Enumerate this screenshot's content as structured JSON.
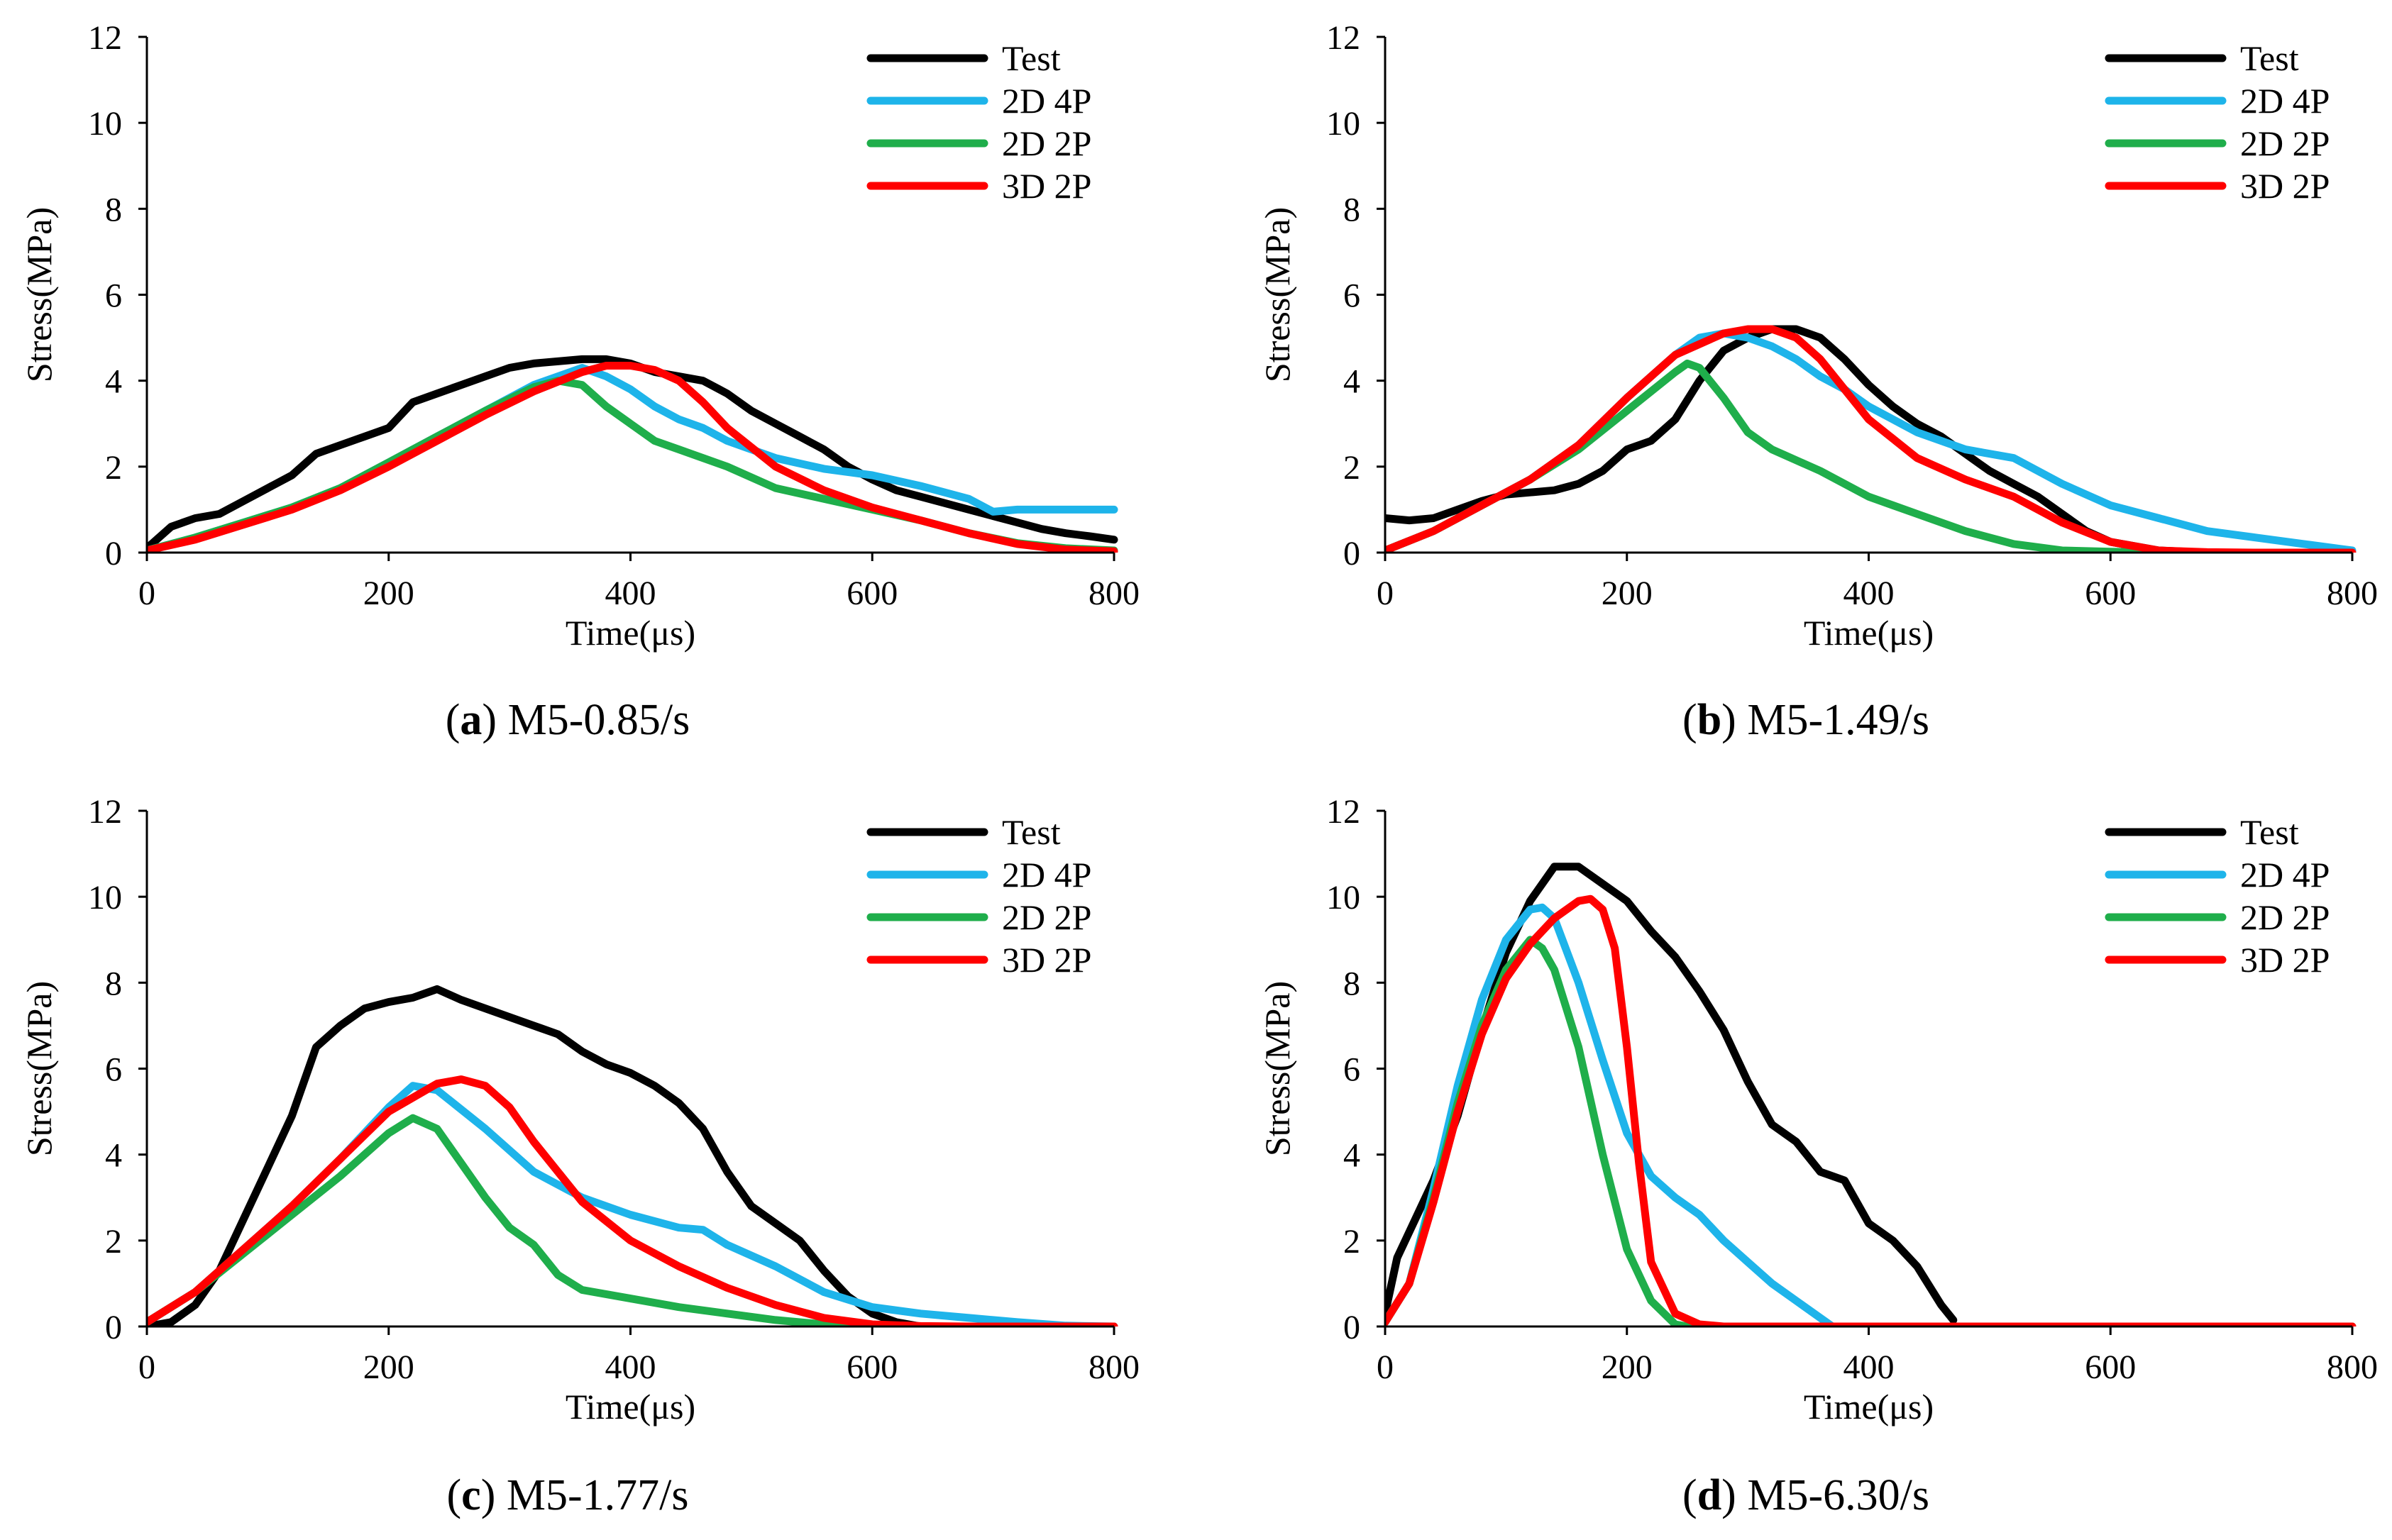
{
  "figure": {
    "colors": {
      "Test": "#000000",
      "2D 4P": "#1eb4ea",
      "2D 2P": "#1fae4b",
      "3D 2P": "#ff0000"
    }
  },
  "chart_data": [
    {
      "type": "line",
      "id": "a",
      "caption_letter": "a",
      "caption_text": "M5-0.85/s",
      "xlabel": "Time(μs)",
      "ylabel": "Stress(MPa)",
      "xlim": [
        0,
        800
      ],
      "ylim": [
        0,
        12
      ],
      "xticks": [
        "0",
        "200",
        "400",
        "600",
        "800"
      ],
      "yticks": [
        "0",
        "2",
        "4",
        "6",
        "8",
        "10",
        "12"
      ],
      "legend": [
        "Test",
        "2D 4P",
        "2D 2P",
        "3D 2P"
      ],
      "series": [
        {
          "name": "Test",
          "color": "#000000",
          "x": [
            0,
            20,
            40,
            60,
            80,
            100,
            120,
            140,
            160,
            180,
            200,
            220,
            240,
            260,
            280,
            300,
            320,
            340,
            360,
            380,
            400,
            420,
            440,
            460,
            480,
            500,
            520,
            540,
            560,
            580,
            600,
            620,
            640,
            660,
            680,
            700,
            720,
            740,
            760,
            780,
            800
          ],
          "y": [
            0.1,
            0.6,
            0.8,
            0.9,
            1.2,
            1.5,
            1.8,
            2.3,
            2.5,
            2.7,
            2.9,
            3.5,
            3.7,
            3.9,
            4.1,
            4.3,
            4.4,
            4.45,
            4.5,
            4.5,
            4.4,
            4.2,
            4.1,
            4.0,
            3.7,
            3.3,
            3.0,
            2.7,
            2.4,
            2.0,
            1.7,
            1.45,
            1.3,
            1.15,
            1.0,
            0.85,
            0.7,
            0.55,
            0.45,
            0.38,
            0.3
          ]
        },
        {
          "name": "2D 4P",
          "color": "#1eb4ea",
          "x": [
            0,
            40,
            80,
            120,
            160,
            200,
            240,
            280,
            320,
            360,
            380,
            400,
            420,
            440,
            460,
            480,
            520,
            560,
            600,
            640,
            680,
            700,
            720,
            760,
            800
          ],
          "y": [
            0.05,
            0.35,
            0.7,
            1.05,
            1.5,
            2.1,
            2.7,
            3.3,
            3.9,
            4.3,
            4.1,
            3.8,
            3.4,
            3.1,
            2.9,
            2.6,
            2.2,
            1.95,
            1.8,
            1.55,
            1.25,
            0.95,
            1.0,
            1.0,
            1.0
          ]
        },
        {
          "name": "2D 2P",
          "color": "#1fae4b",
          "x": [
            0,
            40,
            80,
            120,
            160,
            200,
            240,
            280,
            320,
            340,
            360,
            380,
            400,
            420,
            440,
            460,
            480,
            520,
            560,
            600,
            640,
            680,
            720,
            760,
            800
          ],
          "y": [
            0.05,
            0.35,
            0.7,
            1.05,
            1.5,
            2.1,
            2.7,
            3.3,
            3.85,
            4.0,
            3.9,
            3.4,
            3.0,
            2.6,
            2.4,
            2.2,
            2.0,
            1.5,
            1.25,
            1.0,
            0.75,
            0.45,
            0.22,
            0.1,
            0.05
          ]
        },
        {
          "name": "3D 2P",
          "color": "#ff0000",
          "x": [
            0,
            40,
            80,
            120,
            160,
            200,
            240,
            280,
            320,
            360,
            380,
            400,
            420,
            440,
            460,
            480,
            520,
            560,
            600,
            640,
            680,
            720,
            760,
            800
          ],
          "y": [
            0.05,
            0.3,
            0.65,
            1.0,
            1.45,
            2.0,
            2.6,
            3.2,
            3.75,
            4.2,
            4.35,
            4.35,
            4.25,
            4.0,
            3.5,
            2.9,
            2.0,
            1.45,
            1.05,
            0.75,
            0.45,
            0.2,
            0.07,
            0.03
          ]
        }
      ]
    },
    {
      "type": "line",
      "id": "b",
      "caption_letter": "b",
      "caption_text": "M5-1.49/s",
      "xlabel": "Time(μs)",
      "ylabel": "Stress(MPa)",
      "xlim": [
        0,
        800
      ],
      "ylim": [
        0,
        12
      ],
      "xticks": [
        "0",
        "200",
        "400",
        "600",
        "800"
      ],
      "yticks": [
        "0",
        "2",
        "4",
        "6",
        "8",
        "10",
        "12"
      ],
      "legend": [
        "Test",
        "2D 4P",
        "2D 2P",
        "3D 2P"
      ],
      "series": [
        {
          "name": "Test",
          "color": "#000000",
          "x": [
            0,
            20,
            40,
            60,
            80,
            100,
            120,
            140,
            160,
            180,
            200,
            220,
            240,
            260,
            280,
            300,
            320,
            340,
            360,
            380,
            400,
            420,
            440,
            460,
            480,
            500,
            520,
            540,
            560,
            580,
            600,
            640,
            680
          ],
          "y": [
            0.8,
            0.75,
            0.8,
            1.0,
            1.2,
            1.35,
            1.4,
            1.45,
            1.6,
            1.9,
            2.4,
            2.6,
            3.1,
            4.0,
            4.7,
            5.0,
            5.2,
            5.2,
            5.0,
            4.5,
            3.9,
            3.4,
            3.0,
            2.7,
            2.3,
            1.9,
            1.6,
            1.3,
            0.9,
            0.5,
            0.25,
            0.05,
            0.0
          ]
        },
        {
          "name": "2D 4P",
          "color": "#1eb4ea",
          "x": [
            0,
            40,
            80,
            120,
            160,
            200,
            240,
            260,
            280,
            300,
            320,
            340,
            360,
            380,
            400,
            440,
            480,
            520,
            560,
            600,
            640,
            680,
            720,
            760,
            800
          ],
          "y": [
            0.05,
            0.5,
            1.1,
            1.7,
            2.5,
            3.6,
            4.6,
            5.0,
            5.1,
            5.0,
            4.8,
            4.5,
            4.1,
            3.8,
            3.4,
            2.8,
            2.4,
            2.2,
            1.6,
            1.1,
            0.8,
            0.5,
            0.35,
            0.2,
            0.05
          ]
        },
        {
          "name": "2D 2P",
          "color": "#1fae4b",
          "x": [
            0,
            40,
            80,
            120,
            160,
            200,
            240,
            250,
            260,
            280,
            300,
            320,
            360,
            400,
            440,
            480,
            520,
            560,
            600,
            640
          ],
          "y": [
            0.05,
            0.5,
            1.1,
            1.7,
            2.4,
            3.3,
            4.2,
            4.4,
            4.3,
            3.6,
            2.8,
            2.4,
            1.9,
            1.3,
            0.9,
            0.5,
            0.2,
            0.05,
            0.02,
            0.0
          ]
        },
        {
          "name": "3D 2P",
          "color": "#ff0000",
          "x": [
            0,
            40,
            80,
            120,
            160,
            200,
            240,
            280,
            300,
            320,
            340,
            360,
            380,
            400,
            440,
            480,
            520,
            560,
            600,
            640,
            680,
            720,
            800
          ],
          "y": [
            0.05,
            0.5,
            1.1,
            1.7,
            2.5,
            3.6,
            4.6,
            5.1,
            5.2,
            5.2,
            5.0,
            4.5,
            3.8,
            3.1,
            2.2,
            1.7,
            1.3,
            0.7,
            0.25,
            0.05,
            0.01,
            0.0,
            0.0
          ]
        }
      ]
    },
    {
      "type": "line",
      "id": "c",
      "caption_letter": "c",
      "caption_text": "M5-1.77/s",
      "xlabel": "Time(μs)",
      "ylabel": "Stress(MPa)",
      "xlim": [
        0,
        800
      ],
      "ylim": [
        0,
        12
      ],
      "xticks": [
        "0",
        "200",
        "400",
        "600",
        "800"
      ],
      "yticks": [
        "0",
        "2",
        "4",
        "6",
        "8",
        "10",
        "12"
      ],
      "legend": [
        "Test",
        "2D 4P",
        "2D 2P",
        "3D 2P"
      ],
      "series": [
        {
          "name": "Test",
          "color": "#000000",
          "x": [
            0,
            20,
            40,
            60,
            80,
            100,
            120,
            140,
            160,
            180,
            200,
            220,
            240,
            260,
            280,
            300,
            320,
            340,
            360,
            380,
            400,
            420,
            440,
            460,
            480,
            500,
            520,
            540,
            560,
            580,
            600,
            620,
            640,
            680
          ],
          "y": [
            0.0,
            0.1,
            0.5,
            1.3,
            2.5,
            3.7,
            4.9,
            6.5,
            7.0,
            7.4,
            7.55,
            7.65,
            7.85,
            7.6,
            7.4,
            7.2,
            7.0,
            6.8,
            6.4,
            6.1,
            5.9,
            5.6,
            5.2,
            4.6,
            3.6,
            2.8,
            2.4,
            2.0,
            1.3,
            0.7,
            0.3,
            0.1,
            0.0,
            0.0
          ]
        },
        {
          "name": "2D 4P",
          "color": "#1eb4ea",
          "x": [
            0,
            40,
            80,
            120,
            160,
            200,
            220,
            240,
            280,
            320,
            360,
            400,
            440,
            460,
            480,
            520,
            560,
            600,
            640,
            680,
            720,
            760,
            800
          ],
          "y": [
            0.1,
            0.8,
            1.8,
            2.8,
            3.9,
            5.1,
            5.6,
            5.5,
            4.6,
            3.6,
            3.0,
            2.6,
            2.3,
            2.25,
            1.9,
            1.4,
            0.8,
            0.45,
            0.3,
            0.2,
            0.1,
            0.02,
            0.0
          ]
        },
        {
          "name": "2D 2P",
          "color": "#1fae4b",
          "x": [
            0,
            40,
            80,
            120,
            160,
            200,
            220,
            240,
            260,
            280,
            300,
            320,
            340,
            360,
            400,
            440,
            480,
            520,
            560,
            600,
            800
          ],
          "y": [
            0.1,
            0.8,
            1.7,
            2.6,
            3.5,
            4.5,
            4.85,
            4.6,
            3.8,
            3.0,
            2.3,
            1.9,
            1.2,
            0.85,
            0.65,
            0.45,
            0.3,
            0.15,
            0.05,
            0.0,
            0.0
          ]
        },
        {
          "name": "3D 2P",
          "color": "#ff0000",
          "x": [
            0,
            40,
            80,
            120,
            160,
            200,
            240,
            260,
            280,
            300,
            320,
            340,
            360,
            400,
            440,
            480,
            520,
            560,
            600,
            640,
            680,
            800
          ],
          "y": [
            0.1,
            0.8,
            1.8,
            2.8,
            3.9,
            5.0,
            5.65,
            5.75,
            5.6,
            5.1,
            4.3,
            3.6,
            2.9,
            2.0,
            1.4,
            0.9,
            0.5,
            0.2,
            0.05,
            0.01,
            0.0,
            0.0
          ]
        }
      ]
    },
    {
      "type": "line",
      "id": "d",
      "caption_letter": "d",
      "caption_text": "M5-6.30/s",
      "xlabel": "Time(μs)",
      "ylabel": "Stress(MPa)",
      "xlim": [
        0,
        800
      ],
      "ylim": [
        0,
        12
      ],
      "xticks": [
        "0",
        "200",
        "400",
        "600",
        "800"
      ],
      "yticks": [
        "0",
        "2",
        "4",
        "6",
        "8",
        "10",
        "12"
      ],
      "legend": [
        "Test",
        "2D 4P",
        "2D 2P",
        "3D 2P"
      ],
      "series": [
        {
          "name": "Test",
          "color": "#000000",
          "x": [
            0,
            10,
            20,
            40,
            60,
            80,
            100,
            120,
            140,
            160,
            180,
            200,
            220,
            240,
            260,
            280,
            300,
            320,
            340,
            360,
            380,
            400,
            420,
            440,
            460,
            470
          ],
          "y": [
            0.3,
            1.6,
            2.2,
            3.4,
            4.9,
            6.9,
            8.7,
            9.9,
            10.7,
            10.7,
            10.3,
            9.9,
            9.2,
            8.6,
            7.8,
            6.9,
            5.7,
            4.7,
            4.3,
            3.6,
            3.4,
            2.4,
            2.0,
            1.4,
            0.5,
            0.15
          ]
        },
        {
          "name": "2D 4P",
          "color": "#1eb4ea",
          "x": [
            0,
            20,
            40,
            60,
            80,
            100,
            120,
            130,
            140,
            160,
            180,
            200,
            220,
            240,
            260,
            280,
            300,
            320,
            340,
            360,
            370
          ],
          "y": [
            0.1,
            1.0,
            3.2,
            5.6,
            7.6,
            9.0,
            9.7,
            9.75,
            9.5,
            8.0,
            6.2,
            4.5,
            3.5,
            3.0,
            2.6,
            2.0,
            1.5,
            1.0,
            0.6,
            0.2,
            0.0
          ]
        },
        {
          "name": "2D 2P",
          "color": "#1fae4b",
          "x": [
            0,
            20,
            40,
            60,
            80,
            100,
            120,
            130,
            140,
            160,
            180,
            200,
            220,
            240,
            250,
            800
          ],
          "y": [
            0.1,
            1.0,
            3.0,
            5.2,
            7.0,
            8.3,
            9.0,
            8.8,
            8.3,
            6.5,
            4.0,
            1.8,
            0.6,
            0.05,
            0.0,
            0.0
          ]
        },
        {
          "name": "3D 2P",
          "color": "#ff0000",
          "x": [
            0,
            20,
            40,
            60,
            80,
            100,
            120,
            140,
            160,
            170,
            180,
            190,
            200,
            210,
            220,
            240,
            260,
            280,
            800
          ],
          "y": [
            0.1,
            1.0,
            2.9,
            5.0,
            6.8,
            8.1,
            8.9,
            9.5,
            9.9,
            9.95,
            9.7,
            8.8,
            6.5,
            3.8,
            1.5,
            0.3,
            0.05,
            0.0,
            0.0
          ]
        }
      ]
    }
  ]
}
